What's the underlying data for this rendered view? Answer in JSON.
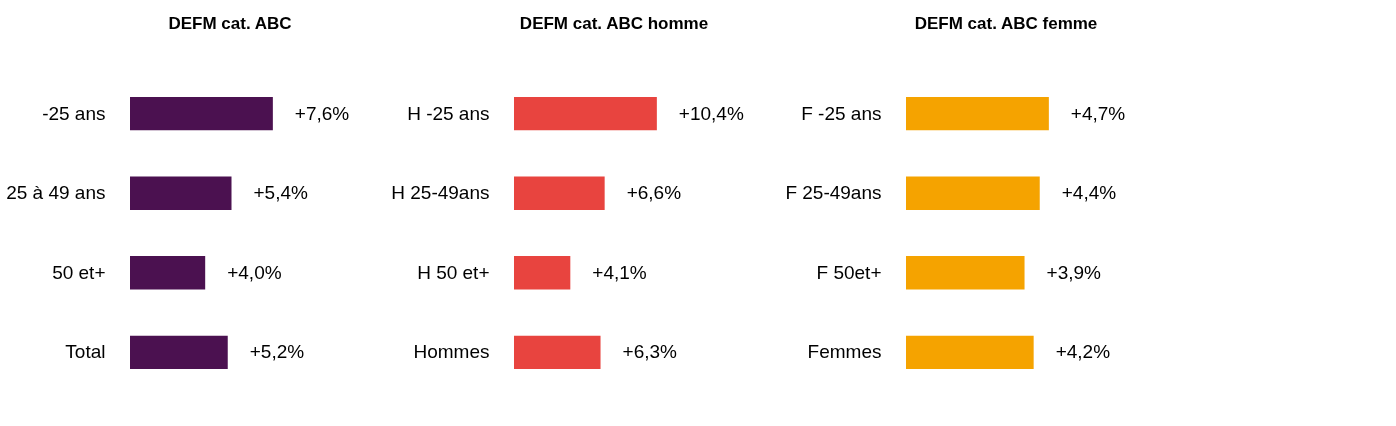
{
  "chart_data": [
    {
      "type": "bar",
      "orientation": "horizontal",
      "title": "DEFM cat. ABC",
      "categories": [
        "-25 ans",
        "25 à 49 ans",
        "50 et+",
        "Total"
      ],
      "series": [
        {
          "color": "#4b1150",
          "values": [
            7.6,
            5.4,
            4.0,
            5.2
          ],
          "value_labels": [
            "+7,6%",
            "+5,4%",
            "+4,0%",
            "+5,2%"
          ]
        }
      ]
    },
    {
      "type": "bar",
      "orientation": "horizontal",
      "title": "DEFM cat. ABC homme",
      "categories": [
        "H -25 ans",
        "H 25-49ans",
        "H 50 et+",
        "Hommes"
      ],
      "series": [
        {
          "color": "#e8443f",
          "values": [
            10.4,
            6.6,
            4.1,
            6.3
          ],
          "value_labels": [
            "+10,4%",
            "+6,6%",
            "+4,1%",
            "+6,3%"
          ]
        }
      ]
    },
    {
      "type": "bar",
      "orientation": "horizontal",
      "title": "DEFM cat. ABC femme",
      "categories": [
        "F -25 ans",
        "F 25-49ans",
        "F 50et+",
        "Femmes"
      ],
      "series": [
        {
          "color": "#f5a300",
          "values": [
            4.7,
            4.4,
            3.9,
            4.2
          ],
          "value_labels": [
            "+4,7%",
            "+4,4%",
            "+3,9%",
            "+4,2%"
          ]
        }
      ]
    }
  ]
}
